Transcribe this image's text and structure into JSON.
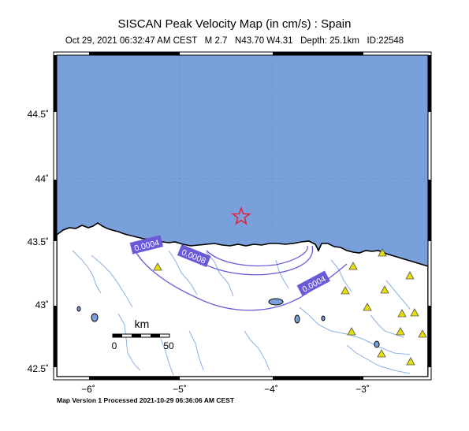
{
  "map": {
    "title": "SISCAN Peak Velocity Map (in cm/s) : Spain",
    "subtitle": "Oct 29, 2021 06:32:47 AM CEST   M 2.7   N43.70 W4.31   Depth: 25.1km   ID:22548",
    "footer": "Map Version 1 Processed 2021-10-29 06:36:06 AM CEST",
    "lat_ticks": [
      "44.5˚",
      "44˚",
      "43.5˚",
      "43˚",
      "42.5˚"
    ],
    "lon_ticks": [
      "−6˚",
      "−5˚",
      "−4˚",
      "−3˚"
    ],
    "contours": [
      "0.0004",
      "0.0008",
      "0.0004"
    ],
    "scale": {
      "unit": "km",
      "start": "0",
      "end": "50"
    },
    "colors": {
      "sea": "#7aa0dc",
      "land": "#ffffff",
      "contour": "#6a5ad8",
      "contour_label_bg": "#6a5ad8",
      "epicenter": "#e3203c",
      "station": "#e8e000",
      "river": "#8ab0e0"
    },
    "epicenter_icon": "star-icon",
    "station_icon": "triangle-icon",
    "station_count": 14
  }
}
